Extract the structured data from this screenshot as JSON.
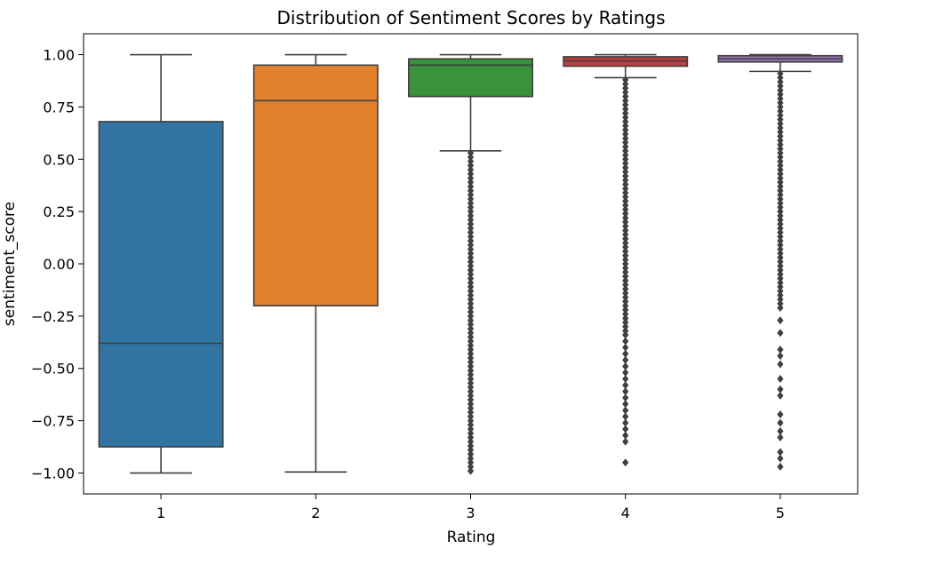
{
  "chart_data": {
    "type": "box",
    "title": "Distribution of Sentiment Scores by Ratings",
    "xlabel": "Rating",
    "ylabel": "sentiment_score",
    "ylim": [
      -1.1,
      1.1
    ],
    "yticks": [
      -1.0,
      -0.75,
      -0.5,
      -0.25,
      0.0,
      0.25,
      0.5,
      0.75,
      1.0
    ],
    "ytick_labels": [
      "−1.00",
      "−0.75",
      "−0.50",
      "−0.25",
      "0.00",
      "0.25",
      "0.50",
      "0.75",
      "1.00"
    ],
    "categories": [
      "1",
      "2",
      "3",
      "4",
      "5"
    ],
    "grid": false,
    "boxes": [
      {
        "category": "1",
        "color": "#3274a1",
        "whisker_low": -1.0,
        "q1": -0.875,
        "median": -0.38,
        "q3": 0.68,
        "whisker_high": 1.0,
        "outliers": []
      },
      {
        "category": "2",
        "color": "#e1812c",
        "whisker_low": -0.995,
        "q1": -0.2,
        "median": 0.78,
        "q3": 0.95,
        "whisker_high": 1.0,
        "outliers": []
      },
      {
        "category": "3",
        "color": "#3a923a",
        "whisker_low": 0.54,
        "q1": 0.8,
        "median": 0.95,
        "q3": 0.98,
        "whisker_high": 1.0,
        "outliers": [
          0.53,
          0.51,
          0.49,
          0.47,
          0.45,
          0.43,
          0.41,
          0.39,
          0.37,
          0.35,
          0.33,
          0.31,
          0.29,
          0.27,
          0.25,
          0.23,
          0.21,
          0.19,
          0.17,
          0.15,
          0.13,
          0.11,
          0.09,
          0.07,
          0.05,
          0.03,
          0.01,
          -0.01,
          -0.03,
          -0.05,
          -0.07,
          -0.09,
          -0.11,
          -0.13,
          -0.15,
          -0.17,
          -0.19,
          -0.21,
          -0.23,
          -0.25,
          -0.27,
          -0.29,
          -0.31,
          -0.33,
          -0.35,
          -0.37,
          -0.39,
          -0.41,
          -0.43,
          -0.45,
          -0.47,
          -0.49,
          -0.51,
          -0.53,
          -0.55,
          -0.57,
          -0.59,
          -0.61,
          -0.63,
          -0.65,
          -0.67,
          -0.69,
          -0.71,
          -0.73,
          -0.75,
          -0.77,
          -0.79,
          -0.81,
          -0.83,
          -0.85,
          -0.87,
          -0.89,
          -0.91,
          -0.93,
          -0.95,
          -0.97,
          -0.99
        ]
      },
      {
        "category": "4",
        "color": "#c03d3e",
        "whisker_low": 0.89,
        "q1": 0.945,
        "median": 0.97,
        "q3": 0.99,
        "whisker_high": 1.0,
        "outliers": [
          0.88,
          0.86,
          0.84,
          0.82,
          0.8,
          0.78,
          0.76,
          0.74,
          0.72,
          0.7,
          0.68,
          0.66,
          0.64,
          0.62,
          0.6,
          0.58,
          0.56,
          0.54,
          0.52,
          0.5,
          0.48,
          0.46,
          0.44,
          0.42,
          0.4,
          0.38,
          0.36,
          0.34,
          0.32,
          0.3,
          0.28,
          0.26,
          0.24,
          0.22,
          0.2,
          0.18,
          0.16,
          0.14,
          0.12,
          0.1,
          0.08,
          0.06,
          0.04,
          0.02,
          0.0,
          -0.02,
          -0.04,
          -0.06,
          -0.08,
          -0.1,
          -0.12,
          -0.14,
          -0.16,
          -0.18,
          -0.2,
          -0.22,
          -0.24,
          -0.26,
          -0.28,
          -0.3,
          -0.32,
          -0.34,
          -0.37,
          -0.4,
          -0.43,
          -0.46,
          -0.49,
          -0.52,
          -0.55,
          -0.58,
          -0.61,
          -0.64,
          -0.67,
          -0.7,
          -0.73,
          -0.76,
          -0.79,
          -0.82,
          -0.85,
          -0.95
        ]
      },
      {
        "category": "5",
        "color": "#9372b2",
        "whisker_low": 0.92,
        "q1": 0.965,
        "median": 0.98,
        "q3": 0.995,
        "whisker_high": 1.0,
        "outliers": [
          0.91,
          0.89,
          0.87,
          0.85,
          0.83,
          0.81,
          0.79,
          0.77,
          0.75,
          0.73,
          0.71,
          0.69,
          0.67,
          0.65,
          0.63,
          0.61,
          0.59,
          0.57,
          0.55,
          0.53,
          0.51,
          0.49,
          0.47,
          0.45,
          0.43,
          0.41,
          0.39,
          0.37,
          0.35,
          0.33,
          0.31,
          0.29,
          0.27,
          0.25,
          0.23,
          0.21,
          0.19,
          0.17,
          0.15,
          0.13,
          0.11,
          0.09,
          0.07,
          0.05,
          0.03,
          0.01,
          -0.01,
          -0.03,
          -0.05,
          -0.07,
          -0.09,
          -0.11,
          -0.13,
          -0.15,
          -0.17,
          -0.19,
          -0.21,
          -0.27,
          -0.33,
          -0.41,
          -0.44,
          -0.48,
          -0.55,
          -0.6,
          -0.63,
          -0.72,
          -0.76,
          -0.8,
          -0.83,
          -0.9,
          -0.93,
          -0.97
        ]
      }
    ]
  }
}
